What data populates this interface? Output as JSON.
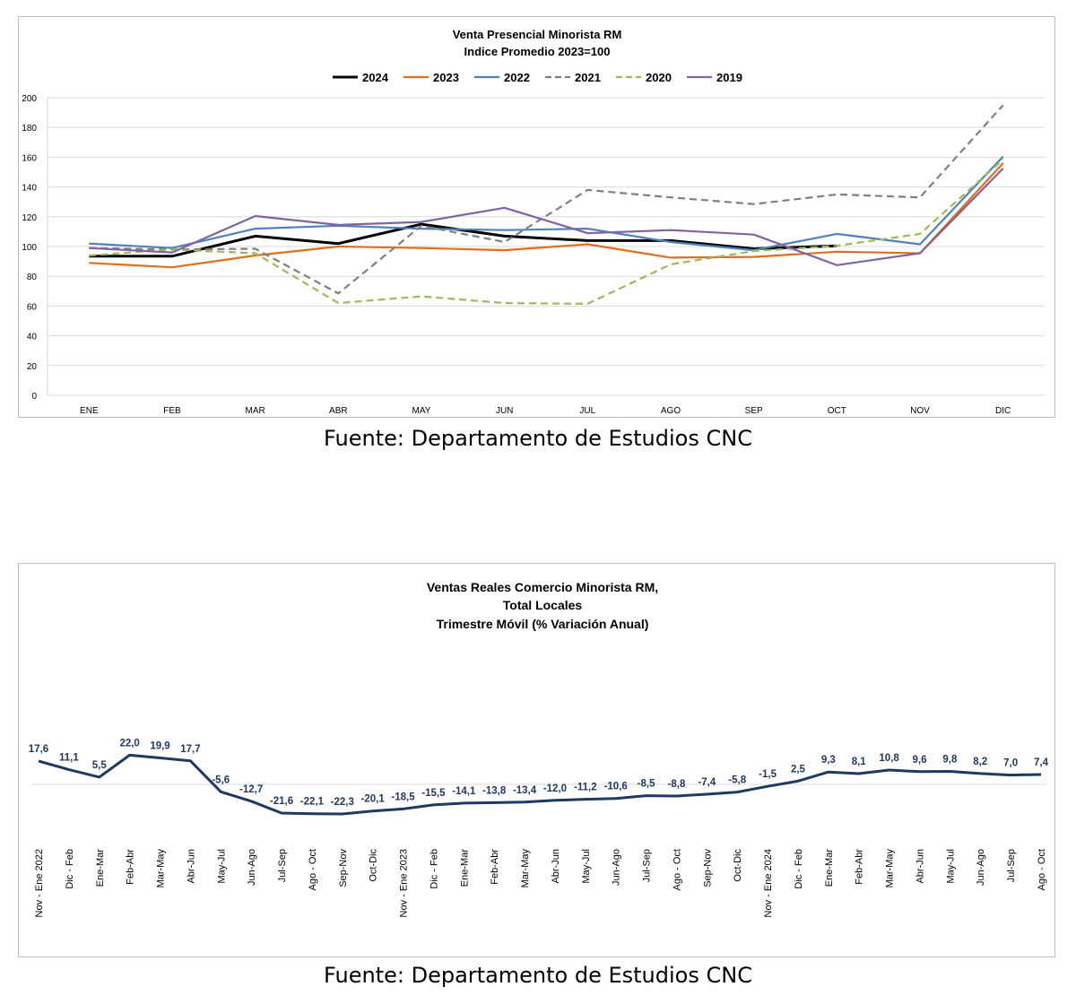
{
  "chart_data": [
    {
      "type": "line",
      "title": "Venta Presencial Minorista RM",
      "subtitle": "Indice Promedio 2023=100",
      "categories": [
        "ENE",
        "FEB",
        "MAR",
        "ABR",
        "MAY",
        "JUN",
        "JUL",
        "AGO",
        "SEP",
        "OCT",
        "NOV",
        "DIC"
      ],
      "ylim": [
        0,
        200
      ],
      "yticks": [
        0,
        20,
        40,
        60,
        80,
        100,
        120,
        140,
        160,
        180,
        200
      ],
      "grid": true,
      "legend_position": "top",
      "series": [
        {
          "name": "2024",
          "color": "#000000",
          "dashed": false,
          "bold": true,
          "values": [
            93.5,
            93.5,
            107,
            102,
            115,
            107,
            104,
            104,
            98.5,
            100.5,
            null,
            null
          ]
        },
        {
          "name": "2023",
          "color": "#E46C1E",
          "dashed": false,
          "bold": false,
          "values": [
            89,
            86,
            94,
            100,
            99,
            97.5,
            101.5,
            92.5,
            93,
            96.5,
            95.5,
            156
          ]
        },
        {
          "name": "2022",
          "color": "#4F81BD",
          "dashed": false,
          "bold": false,
          "values": [
            102,
            99,
            112,
            114,
            112,
            111,
            112,
            103,
            97.5,
            108.5,
            101.5,
            160.5
          ]
        },
        {
          "name": "2021",
          "color": "#7F7F7F",
          "dashed": true,
          "bold": false,
          "values": [
            99,
            98,
            98.5,
            68.5,
            114,
            103,
            138,
            133,
            128.5,
            135,
            133,
            195
          ]
        },
        {
          "name": "2020",
          "color": "#9BBB59",
          "dashed": true,
          "bold": false,
          "values": [
            94,
            98,
            95.5,
            62,
            66.5,
            62,
            61.5,
            88,
            97,
            100.5,
            108.5,
            158.5
          ]
        },
        {
          "name": "2019",
          "color": "#8064A2",
          "dashed": false,
          "bold": false,
          "values": [
            99,
            96,
            120.5,
            114.5,
            116.5,
            126,
            109,
            111,
            108,
            87.5,
            95.5,
            152.5
          ]
        }
      ]
    },
    {
      "type": "line",
      "title": "Ventas Reales Comercio Minorista RM,",
      "subtitle": "Total Locales",
      "subtitle2": "Trimestre Móvil (% Variación Anual)",
      "color": "#1F3864",
      "categories": [
        "Nov - Ene 2022",
        "Dic - Feb",
        "Ene-Mar",
        "Feb-Abr",
        "Mar-May",
        "Abr-Jun",
        "May-Jul",
        "Jun-Ago",
        "Jul-Sep",
        "Ago - Oct",
        "Sep-Nov",
        "Oct-Dic",
        "Nov - Ene 2023",
        "Dic - Feb",
        "Ene-Mar",
        "Feb-Abr",
        "Mar-May",
        "Abr-Jun",
        "May-Jul",
        "Jun-Ago",
        "Jul-Sep",
        "Ago - Oct",
        "Sep-Nov",
        "Oct-Dic",
        "Nov - Ene 2024",
        "Dic - Feb",
        "Ene-Mar",
        "Feb-Abr",
        "Mar-May",
        "Abr-Jun",
        "May-Jul",
        "Jun-Ago",
        "Jul-Sep",
        "Ago - Oct"
      ],
      "values": [
        17.6,
        11.1,
        5.5,
        22.0,
        19.9,
        17.7,
        -5.6,
        -12.7,
        -21.6,
        -22.1,
        -22.3,
        -20.1,
        -18.5,
        -15.5,
        -14.1,
        -13.8,
        -13.4,
        -12.0,
        -11.2,
        -10.6,
        -8.5,
        -8.8,
        -7.4,
        -5.8,
        -1.5,
        2.5,
        9.3,
        8.1,
        10.8,
        9.6,
        9.8,
        8.2,
        7.0,
        7.4
      ],
      "labels": [
        "17,6",
        "11,1",
        "5,5",
        "22,0",
        "19,9",
        "17,7",
        "-5,6",
        "-12,7",
        "-21,6",
        "-22,1",
        "-22,3",
        "-20,1",
        "-18,5",
        "-15,5",
        "-14,1",
        "-13,8",
        "-13,4",
        "-12,0",
        "-11,2",
        "-10,6",
        "-8,5",
        "-8,8",
        "-7,4",
        "-5,8",
        "-1,5",
        "2,5",
        "9,3",
        "8,1",
        "10,8",
        "9,6",
        "9,8",
        "8,2",
        "7,0",
        "7,4"
      ]
    }
  ],
  "sources": [
    "Fuente: Departamento de Estudios CNC",
    "Fuente: Departamento de Estudios CNC"
  ]
}
